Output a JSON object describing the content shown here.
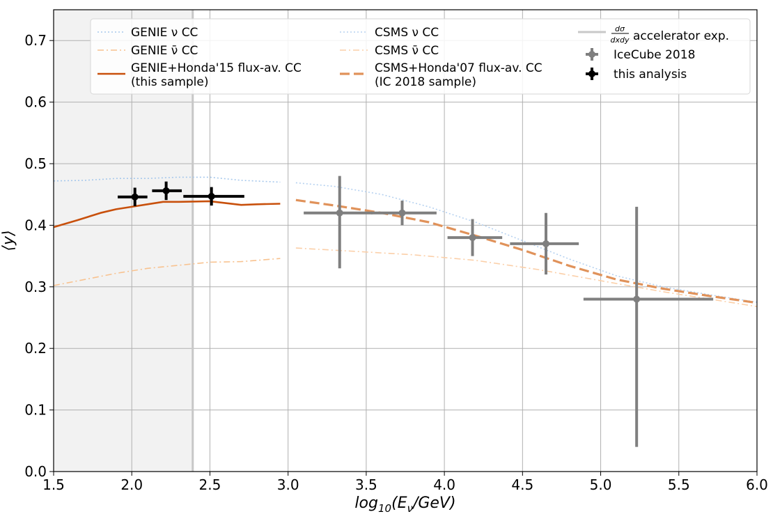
{
  "chart_data": {
    "type": "line",
    "xlabel": "log₁₀(E_ν/GeV)",
    "xlabel_main": "log",
    "xlabel_sub": "10",
    "xlabel_rest": "(E",
    "xlabel_nu": "ν",
    "xlabel_end": "/GeV)",
    "ylabel": "⟨y⟩",
    "xlim": [
      1.5,
      6.0
    ],
    "ylim": [
      0.0,
      0.75
    ],
    "xticks": [
      "1.5",
      "2.0",
      "2.5",
      "3.0",
      "3.5",
      "4.0",
      "4.5",
      "5.0",
      "5.5",
      "6.0"
    ],
    "yticks": [
      "0.0",
      "0.1",
      "0.2",
      "0.3",
      "0.4",
      "0.5",
      "0.6",
      "0.7"
    ],
    "grid": true,
    "legend_position": "top",
    "shaded_region": {
      "x": [
        1.5,
        2.39
      ],
      "color": "#f2f2f2"
    },
    "accelerator_line_x": 2.39,
    "colors": {
      "genie_nu": "#a6c8ec",
      "genie_nubar": "#f8c28f",
      "genie_honda": "#c8500c",
      "csms_nu": "#b5d1f0",
      "csms_nubar": "#fbcfa8",
      "csms_honda": "#e0925a",
      "accel": "#c8c8c8",
      "icecube": "#7f7f7f",
      "analysis": "#000000"
    },
    "series": [
      {
        "name": "GENIE ν CC",
        "style": "dotted",
        "x": [
          1.5,
          1.7,
          1.9,
          2.1,
          2.3,
          2.5,
          2.7,
          2.95
        ],
        "y": [
          0.472,
          0.473,
          0.476,
          0.476,
          0.478,
          0.478,
          0.473,
          0.47
        ]
      },
      {
        "name": "GENIE ν̄ CC",
        "style": "dashdot",
        "x": [
          1.5,
          1.7,
          1.9,
          2.1,
          2.3,
          2.5,
          2.7,
          2.95
        ],
        "y": [
          0.302,
          0.312,
          0.322,
          0.33,
          0.335,
          0.34,
          0.341,
          0.346
        ]
      },
      {
        "name": "GENIE+Honda'15 flux-av. CC",
        "name2": "(this sample)",
        "style": "solid",
        "x": [
          1.5,
          1.65,
          1.8,
          1.9,
          2.0,
          2.1,
          2.2,
          2.3,
          2.5,
          2.6,
          2.7,
          2.8,
          2.95
        ],
        "y": [
          0.397,
          0.408,
          0.42,
          0.426,
          0.43,
          0.434,
          0.438,
          0.438,
          0.439,
          0.436,
          0.433,
          0.434,
          0.435
        ]
      },
      {
        "name": "CSMS ν CC",
        "style": "dotted",
        "x": [
          3.05,
          3.3,
          3.6,
          3.9,
          4.2,
          4.5,
          4.8,
          5.1,
          5.4,
          5.7,
          6.0
        ],
        "y": [
          0.469,
          0.463,
          0.45,
          0.43,
          0.405,
          0.375,
          0.345,
          0.318,
          0.3,
          0.287,
          0.275
        ]
      },
      {
        "name": "CSMS ν̄ CC",
        "style": "dashdot",
        "x": [
          3.05,
          3.4,
          3.8,
          4.2,
          4.6,
          5.0,
          5.4,
          5.8,
          6.0
        ],
        "y": [
          0.363,
          0.358,
          0.352,
          0.343,
          0.328,
          0.31,
          0.292,
          0.276,
          0.268
        ]
      },
      {
        "name": "CSMS+Honda'07 flux-av. CC",
        "name2": "(IC 2018 sample)",
        "style": "dashed",
        "x": [
          3.05,
          3.3,
          3.6,
          3.9,
          4.2,
          4.5,
          4.8,
          5.1,
          5.4,
          5.7,
          6.0
        ],
        "y": [
          0.441,
          0.432,
          0.42,
          0.405,
          0.383,
          0.36,
          0.334,
          0.312,
          0.297,
          0.285,
          0.274
        ]
      }
    ],
    "icecube_2018": [
      {
        "x": 3.33,
        "xlo": 3.1,
        "xhi": 3.54,
        "y": 0.42,
        "ylo": 0.33,
        "yhi": 0.48
      },
      {
        "x": 3.73,
        "xlo": 3.53,
        "xhi": 3.95,
        "y": 0.42,
        "ylo": 0.4,
        "yhi": 0.44
      },
      {
        "x": 4.18,
        "xlo": 4.02,
        "xhi": 4.37,
        "y": 0.38,
        "ylo": 0.35,
        "yhi": 0.41
      },
      {
        "x": 4.65,
        "xlo": 4.42,
        "xhi": 4.86,
        "y": 0.37,
        "ylo": 0.32,
        "yhi": 0.42
      },
      {
        "x": 5.23,
        "xlo": 4.89,
        "xhi": 5.72,
        "y": 0.28,
        "ylo": 0.04,
        "yhi": 0.43
      }
    ],
    "this_analysis": [
      {
        "x": 2.02,
        "xlo": 1.91,
        "xhi": 2.1,
        "y": 0.446,
        "ylo": 0.431,
        "yhi": 0.461
      },
      {
        "x": 2.22,
        "xlo": 2.13,
        "xhi": 2.32,
        "y": 0.456,
        "ylo": 0.441,
        "yhi": 0.471
      },
      {
        "x": 2.51,
        "xlo": 2.33,
        "xhi": 2.72,
        "y": 0.447,
        "ylo": 0.432,
        "yhi": 0.462
      }
    ],
    "legend": {
      "genie_nu": "GENIE ν CC",
      "genie_nubar": "GENIE ν̄ CC",
      "genie_honda_1": "GENIE+Honda'15 flux-av. CC",
      "genie_honda_2": "(this sample)",
      "csms_nu": "CSMS ν CC",
      "csms_nubar": "CSMS ν̄ CC",
      "csms_honda_1": "CSMS+Honda'07 flux-av. CC",
      "csms_honda_2": "(IC 2018 sample)",
      "accel_num": "dσ",
      "accel_den": "dxdy",
      "accel_text": "accelerator exp.",
      "icecube": "IceCube 2018",
      "analysis": "this analysis"
    }
  }
}
